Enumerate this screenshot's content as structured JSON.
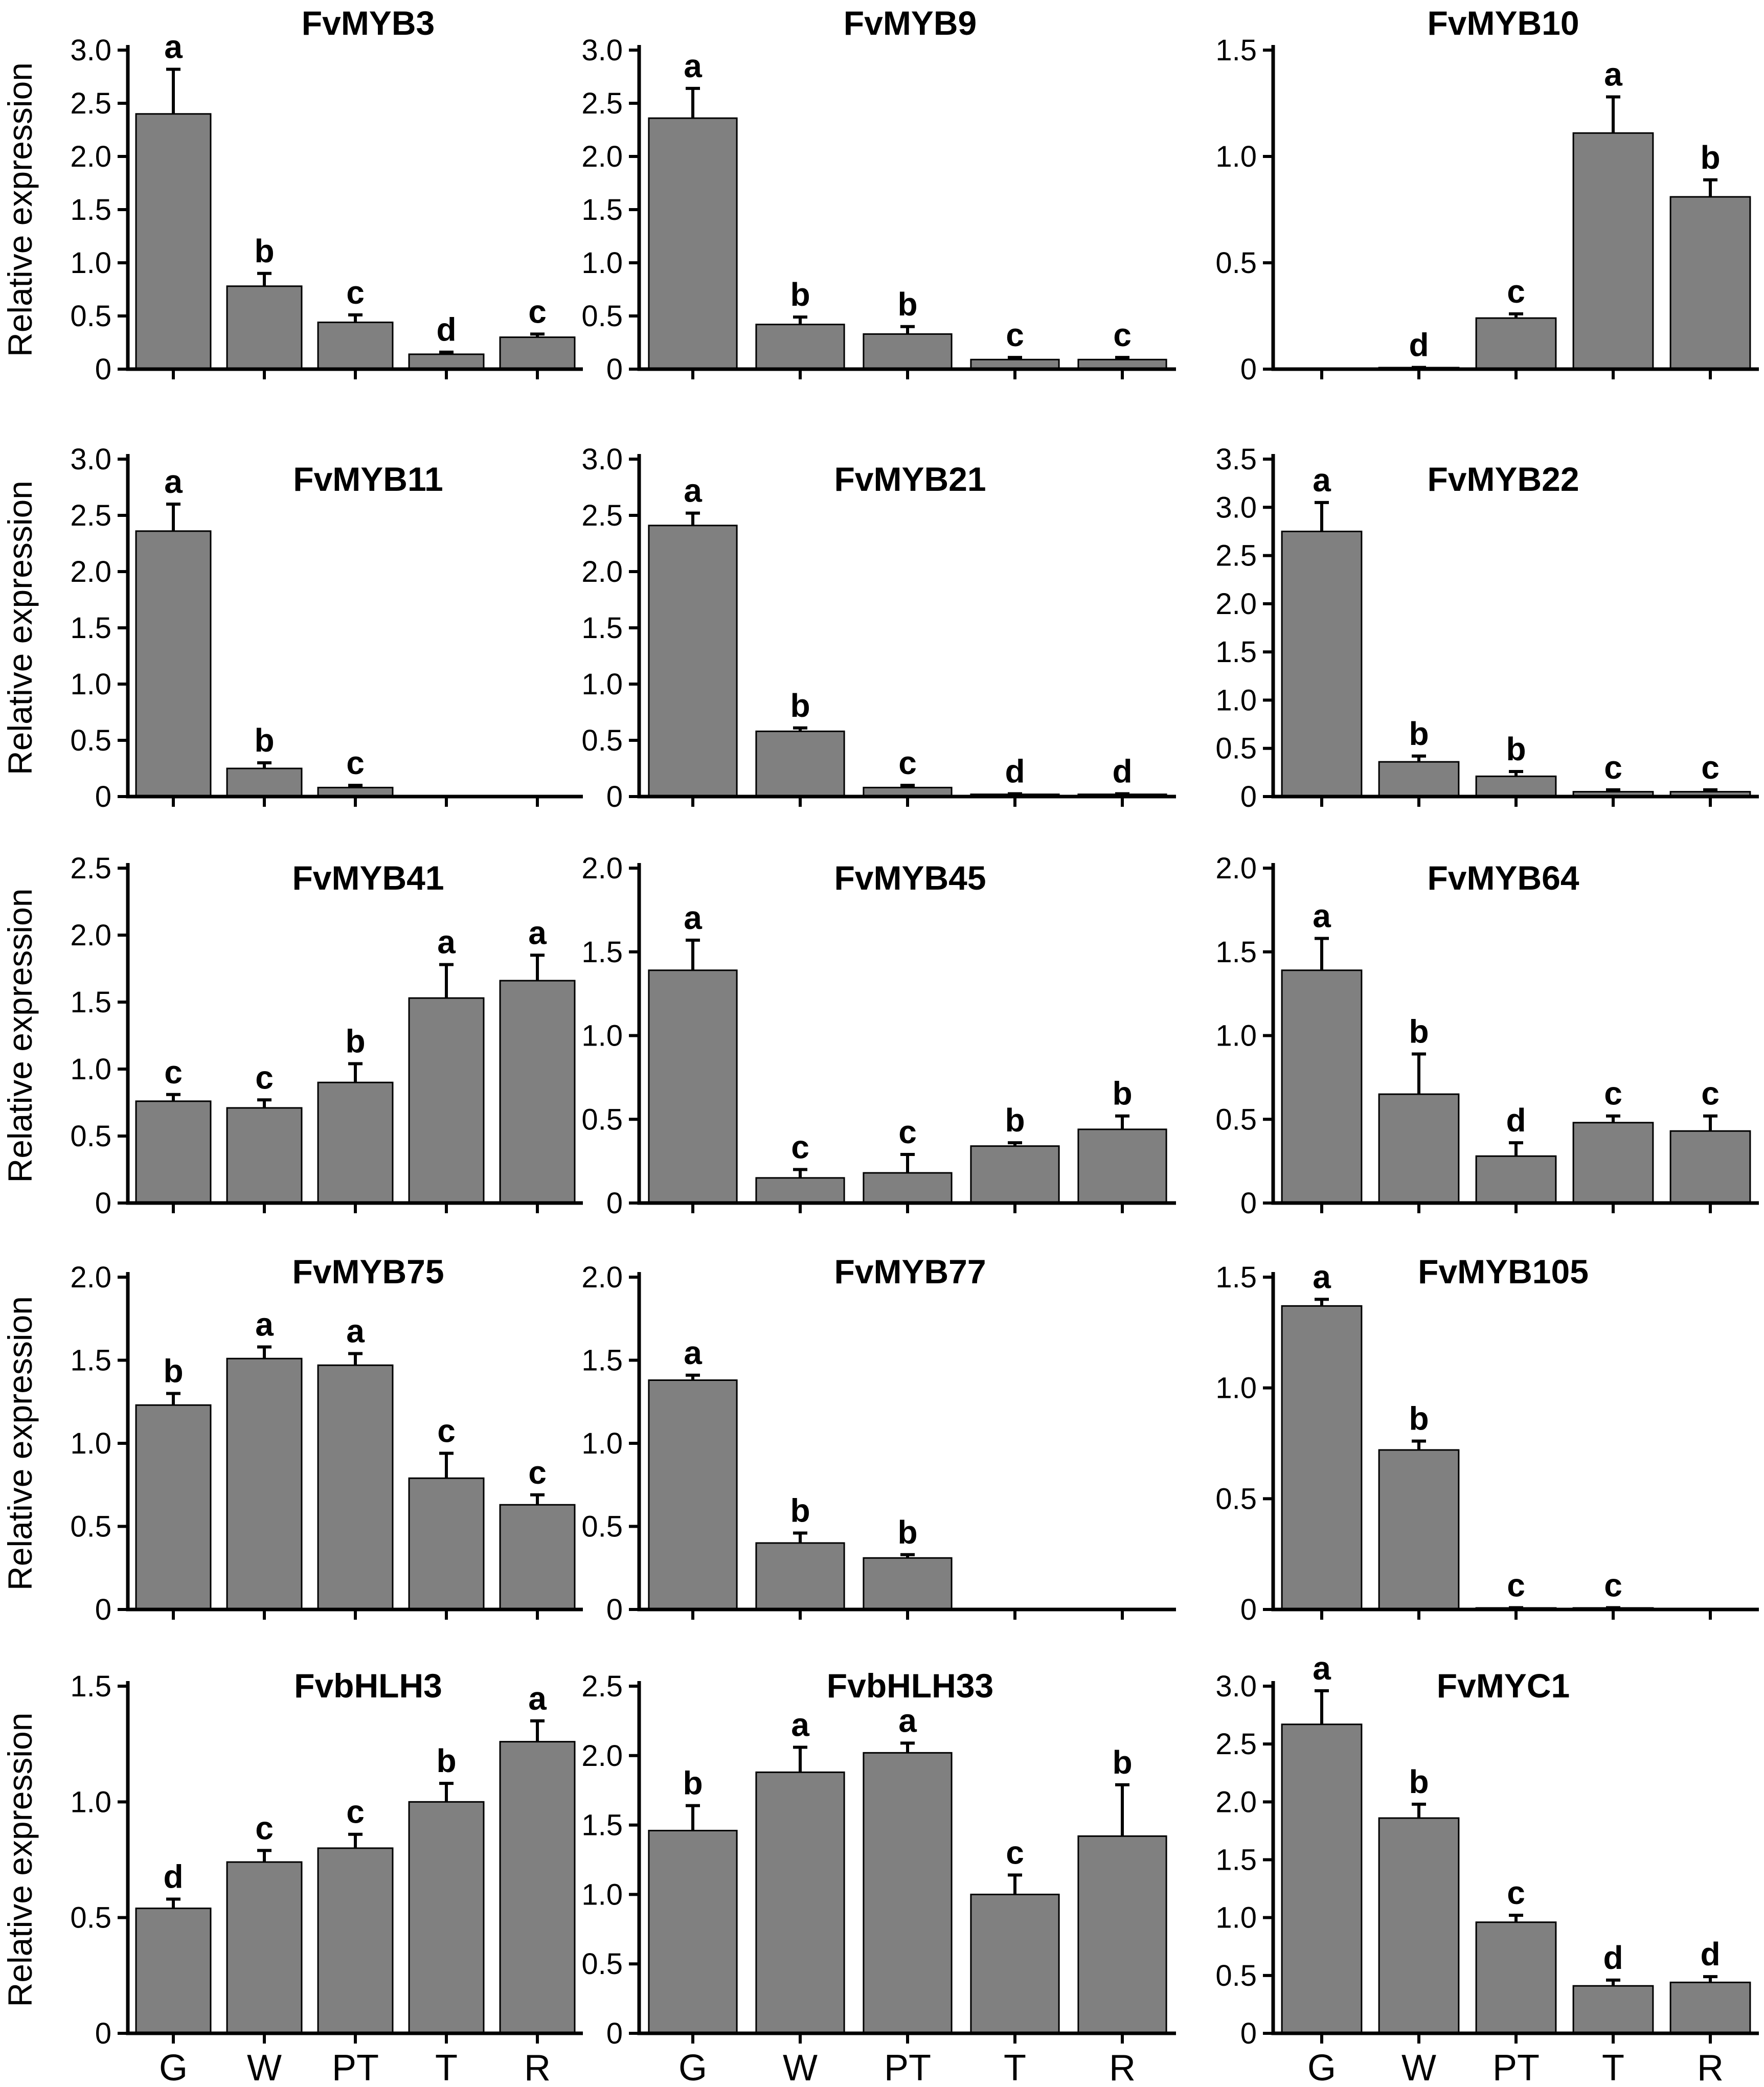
{
  "figure": {
    "ylabel": "Relative expression"
  },
  "chart_data": [
    {
      "type": "bar",
      "title": "FvMYB3",
      "ylabel": "Relative expression",
      "ylim": [
        0,
        3.0
      ],
      "yticks": [
        {
          "v": 0,
          "t": "0"
        },
        {
          "v": 0.5,
          "t": "0.5"
        },
        {
          "v": 1.0,
          "t": "1.0"
        },
        {
          "v": 1.5,
          "t": "1.5"
        },
        {
          "v": 2.0,
          "t": "2.0"
        },
        {
          "v": 2.5,
          "t": "2.5"
        },
        {
          "v": 3.0,
          "t": "3.0"
        }
      ],
      "categories": [
        "G",
        "W",
        "PT",
        "T",
        "R"
      ],
      "values": [
        2.4,
        0.78,
        0.44,
        0.14,
        0.3
      ],
      "errors": [
        0.42,
        0.12,
        0.07,
        0.02,
        0.03
      ],
      "labels": [
        "a",
        "b",
        "c",
        "d",
        "c"
      ]
    },
    {
      "type": "bar",
      "title": "FvMYB9",
      "ylabel": "",
      "ylim": [
        0,
        3.0
      ],
      "yticks": [
        {
          "v": 0,
          "t": "0"
        },
        {
          "v": 0.5,
          "t": "0.5"
        },
        {
          "v": 1.0,
          "t": "1.0"
        },
        {
          "v": 1.5,
          "t": "1.5"
        },
        {
          "v": 2.0,
          "t": "2.0"
        },
        {
          "v": 2.5,
          "t": "2.5"
        },
        {
          "v": 3.0,
          "t": "3.0"
        }
      ],
      "categories": [
        "G",
        "W",
        "PT",
        "T",
        "R"
      ],
      "values": [
        2.36,
        0.42,
        0.33,
        0.09,
        0.09
      ],
      "errors": [
        0.28,
        0.07,
        0.07,
        0.02,
        0.02
      ],
      "labels": [
        "a",
        "b",
        "b",
        "c",
        "c"
      ]
    },
    {
      "type": "bar",
      "title": "FvMYB10",
      "ylabel": "",
      "ylim": [
        0,
        1.5
      ],
      "yticks": [
        {
          "v": 0,
          "t": "0"
        },
        {
          "v": 0.5,
          "t": "0.5"
        },
        {
          "v": 1.0,
          "t": "1.0"
        },
        {
          "v": 1.5,
          "t": "1.5"
        }
      ],
      "categories": [
        "G",
        "W",
        "PT",
        "T",
        "R"
      ],
      "values": [
        0,
        0.005,
        0.24,
        1.11,
        0.81
      ],
      "errors": [
        0,
        0.003,
        0.02,
        0.17,
        0.08
      ],
      "labels": [
        "",
        "d",
        "c",
        "a",
        "b"
      ]
    },
    {
      "type": "bar",
      "title": "FvMYB11",
      "ylabel": "Relative expression",
      "ylim": [
        0,
        3.0
      ],
      "yticks": [
        {
          "v": 0,
          "t": "0"
        },
        {
          "v": 0.5,
          "t": "0.5"
        },
        {
          "v": 1.0,
          "t": "1.0"
        },
        {
          "v": 1.5,
          "t": "1.5"
        },
        {
          "v": 2.0,
          "t": "2.0"
        },
        {
          "v": 2.5,
          "t": "2.5"
        },
        {
          "v": 3.0,
          "t": "3.0"
        }
      ],
      "categories": [
        "G",
        "W",
        "PT",
        "T",
        "R"
      ],
      "values": [
        2.36,
        0.25,
        0.08,
        0,
        0
      ],
      "errors": [
        0.24,
        0.05,
        0.02,
        0,
        0
      ],
      "labels": [
        "a",
        "b",
        "c",
        "",
        ""
      ]
    },
    {
      "type": "bar",
      "title": "FvMYB21",
      "ylabel": "",
      "ylim": [
        0,
        3.0
      ],
      "yticks": [
        {
          "v": 0,
          "t": "0"
        },
        {
          "v": 0.5,
          "t": "0.5"
        },
        {
          "v": 1.0,
          "t": "1.0"
        },
        {
          "v": 1.5,
          "t": "1.5"
        },
        {
          "v": 2.0,
          "t": "2.0"
        },
        {
          "v": 2.5,
          "t": "2.5"
        },
        {
          "v": 3.0,
          "t": "3.0"
        }
      ],
      "categories": [
        "G",
        "W",
        "PT",
        "T",
        "R"
      ],
      "values": [
        2.41,
        0.58,
        0.08,
        0.02,
        0.02
      ],
      "errors": [
        0.11,
        0.03,
        0.02,
        0.005,
        0.005
      ],
      "labels": [
        "a",
        "b",
        "c",
        "d",
        "d"
      ]
    },
    {
      "type": "bar",
      "title": "FvMYB22",
      "ylabel": "",
      "ylim": [
        0,
        3.5
      ],
      "yticks": [
        {
          "v": 0,
          "t": "0"
        },
        {
          "v": 0.5,
          "t": "0.5"
        },
        {
          "v": 1.0,
          "t": "1.0"
        },
        {
          "v": 1.5,
          "t": "1.5"
        },
        {
          "v": 2.0,
          "t": "2.0"
        },
        {
          "v": 2.5,
          "t": "2.5"
        },
        {
          "v": 3.0,
          "t": "3.0"
        },
        {
          "v": 3.5,
          "t": "3.5"
        }
      ],
      "categories": [
        "G",
        "W",
        "PT",
        "T",
        "R"
      ],
      "values": [
        2.75,
        0.36,
        0.21,
        0.05,
        0.05
      ],
      "errors": [
        0.3,
        0.06,
        0.05,
        0.02,
        0.02
      ],
      "labels": [
        "a",
        "b",
        "b",
        "c",
        "c"
      ]
    },
    {
      "type": "bar",
      "title": "FvMYB41",
      "ylabel": "Relative expression",
      "ylim": [
        0,
        2.5
      ],
      "yticks": [
        {
          "v": 0,
          "t": "0"
        },
        {
          "v": 0.5,
          "t": "0.5"
        },
        {
          "v": 1.0,
          "t": "1.0"
        },
        {
          "v": 1.5,
          "t": "1.5"
        },
        {
          "v": 2.0,
          "t": "2.0"
        },
        {
          "v": 2.5,
          "t": "2.5"
        }
      ],
      "categories": [
        "G",
        "W",
        "PT",
        "T",
        "R"
      ],
      "values": [
        0.76,
        0.71,
        0.9,
        1.53,
        1.66
      ],
      "errors": [
        0.05,
        0.06,
        0.14,
        0.25,
        0.19
      ],
      "labels": [
        "c",
        "c",
        "b",
        "a",
        "a"
      ]
    },
    {
      "type": "bar",
      "title": "FvMYB45",
      "ylabel": "",
      "ylim": [
        0,
        2.0
      ],
      "yticks": [
        {
          "v": 0,
          "t": "0"
        },
        {
          "v": 0.5,
          "t": "0.5"
        },
        {
          "v": 1.0,
          "t": "1.0"
        },
        {
          "v": 1.5,
          "t": "1.5"
        },
        {
          "v": 2.0,
          "t": "2.0"
        }
      ],
      "categories": [
        "G",
        "W",
        "PT",
        "T",
        "R"
      ],
      "values": [
        1.39,
        0.15,
        0.18,
        0.34,
        0.44
      ],
      "errors": [
        0.18,
        0.05,
        0.11,
        0.02,
        0.08
      ],
      "labels": [
        "a",
        "c",
        "c",
        "b",
        "b"
      ]
    },
    {
      "type": "bar",
      "title": "FvMYB64",
      "ylabel": "",
      "ylim": [
        0,
        2.0
      ],
      "yticks": [
        {
          "v": 0,
          "t": "0"
        },
        {
          "v": 0.5,
          "t": "0.5"
        },
        {
          "v": 1.0,
          "t": "1.0"
        },
        {
          "v": 1.5,
          "t": "1.5"
        },
        {
          "v": 2.0,
          "t": "2.0"
        }
      ],
      "categories": [
        "G",
        "W",
        "PT",
        "T",
        "R"
      ],
      "values": [
        1.39,
        0.65,
        0.28,
        0.48,
        0.43
      ],
      "errors": [
        0.19,
        0.24,
        0.08,
        0.04,
        0.09
      ],
      "labels": [
        "a",
        "b",
        "d",
        "c",
        "c"
      ]
    },
    {
      "type": "bar",
      "title": "FvMYB75",
      "ylabel": "Relative expression",
      "ylim": [
        0,
        2.0
      ],
      "yticks": [
        {
          "v": 0,
          "t": "0"
        },
        {
          "v": 0.5,
          "t": "0.5"
        },
        {
          "v": 1.0,
          "t": "1.0"
        },
        {
          "v": 1.5,
          "t": "1.5"
        },
        {
          "v": 2.0,
          "t": "2.0"
        }
      ],
      "categories": [
        "G",
        "W",
        "PT",
        "T",
        "R"
      ],
      "values": [
        1.23,
        1.51,
        1.47,
        0.79,
        0.63
      ],
      "errors": [
        0.07,
        0.07,
        0.07,
        0.15,
        0.06
      ],
      "labels": [
        "b",
        "a",
        "a",
        "c",
        "c"
      ]
    },
    {
      "type": "bar",
      "title": "FvMYB77",
      "ylabel": "",
      "ylim": [
        0,
        2.0
      ],
      "yticks": [
        {
          "v": 0,
          "t": "0"
        },
        {
          "v": 0.5,
          "t": "0.5"
        },
        {
          "v": 1.0,
          "t": "1.0"
        },
        {
          "v": 1.5,
          "t": "1.5"
        },
        {
          "v": 2.0,
          "t": "2.0"
        }
      ],
      "categories": [
        "G",
        "W",
        "PT",
        "T",
        "R"
      ],
      "values": [
        1.38,
        0.4,
        0.31,
        0,
        0
      ],
      "errors": [
        0.03,
        0.06,
        0.02,
        0,
        0
      ],
      "labels": [
        "a",
        "b",
        "b",
        "",
        ""
      ]
    },
    {
      "type": "bar",
      "title": "FvMYB105",
      "ylabel": "",
      "ylim": [
        0,
        1.5
      ],
      "yticks": [
        {
          "v": 0,
          "t": "0"
        },
        {
          "v": 0.5,
          "t": "0.5"
        },
        {
          "v": 1.0,
          "t": "1.0"
        },
        {
          "v": 1.5,
          "t": "1.5"
        }
      ],
      "categories": [
        "G",
        "W",
        "PT",
        "T",
        "R"
      ],
      "values": [
        1.37,
        0.72,
        0.005,
        0.005,
        0
      ],
      "errors": [
        0.03,
        0.04,
        0.003,
        0.003,
        0
      ],
      "labels": [
        "a",
        "b",
        "c",
        "c",
        ""
      ]
    },
    {
      "type": "bar",
      "title": "FvbHLH3",
      "ylabel": "Relative expression",
      "ylim": [
        0,
        1.5
      ],
      "yticks": [
        {
          "v": 0,
          "t": "0"
        },
        {
          "v": 0.5,
          "t": "0.5"
        },
        {
          "v": 1.0,
          "t": "1.0"
        },
        {
          "v": 1.5,
          "t": "1.5"
        }
      ],
      "categories": [
        "G",
        "W",
        "PT",
        "T",
        "R"
      ],
      "values": [
        0.54,
        0.74,
        0.8,
        1.0,
        1.26
      ],
      "errors": [
        0.04,
        0.05,
        0.06,
        0.08,
        0.09
      ],
      "labels": [
        "d",
        "c",
        "c",
        "b",
        "a"
      ]
    },
    {
      "type": "bar",
      "title": "FvbHLH33",
      "ylabel": "",
      "ylim": [
        0,
        2.5
      ],
      "yticks": [
        {
          "v": 0,
          "t": "0"
        },
        {
          "v": 0.5,
          "t": "0.5"
        },
        {
          "v": 1.0,
          "t": "1.0"
        },
        {
          "v": 1.5,
          "t": "1.5"
        },
        {
          "v": 2.0,
          "t": "2.0"
        },
        {
          "v": 2.5,
          "t": "2.5"
        }
      ],
      "categories": [
        "G",
        "W",
        "PT",
        "T",
        "R"
      ],
      "values": [
        1.46,
        1.88,
        2.02,
        1.0,
        1.42
      ],
      "errors": [
        0.18,
        0.18,
        0.07,
        0.14,
        0.37
      ],
      "labels": [
        "b",
        "a",
        "a",
        "c",
        "b"
      ]
    },
    {
      "type": "bar",
      "title": "FvMYC1",
      "ylabel": "",
      "ylim": [
        0,
        3.0
      ],
      "yticks": [
        {
          "v": 0,
          "t": "0"
        },
        {
          "v": 0.5,
          "t": "0.5"
        },
        {
          "v": 1.0,
          "t": "1.0"
        },
        {
          "v": 1.5,
          "t": "1.5"
        },
        {
          "v": 2.0,
          "t": "2.0"
        },
        {
          "v": 2.5,
          "t": "2.5"
        },
        {
          "v": 3.0,
          "t": "3.0"
        }
      ],
      "categories": [
        "G",
        "W",
        "PT",
        "T",
        "R"
      ],
      "values": [
        2.67,
        1.86,
        0.96,
        0.41,
        0.44
      ],
      "errors": [
        0.29,
        0.12,
        0.06,
        0.05,
        0.05
      ],
      "labels": [
        "a",
        "b",
        "c",
        "d",
        "d"
      ]
    }
  ]
}
